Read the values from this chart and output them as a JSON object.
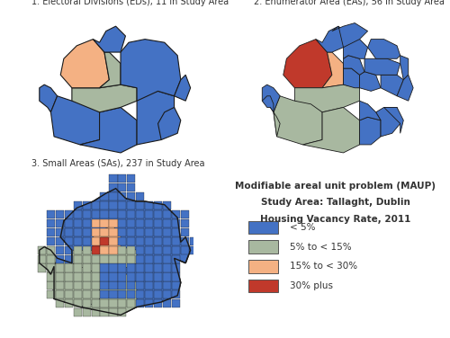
{
  "title1": "1. Electoral Divisions (EDs), 11 in Study Area",
  "title2": "2. Enumerator Area (EAs), 56 in Study Area",
  "title3": "3. Small Areas (SAs), 237 in Study Area",
  "legend_title_line1": "Modifiable areal unit problem (MAUP)",
  "legend_title_line2": "Study Area: Tallaght, Dublin",
  "legend_title_line3": "Housing Vacancy Rate, 2011",
  "legend_labels": [
    "< 5%",
    "5% to < 15%",
    "15% to < 30%",
    "30% plus"
  ],
  "colors": {
    "blue": "#4472C4",
    "green": "#A8B8A0",
    "orange": "#F4B183",
    "red": "#C0392B",
    "edge": "#1a1a1a",
    "background": "#ffffff"
  },
  "title_fontsize": 7.0,
  "legend_title_fontsize": 7.5,
  "legend_label_fontsize": 7.5
}
